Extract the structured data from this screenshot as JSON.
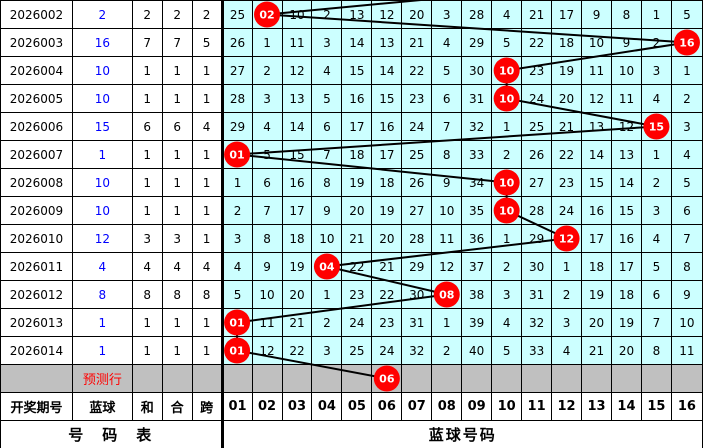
{
  "columns": {
    "period": "开奖期号",
    "blue": "蓝球",
    "sum": "和",
    "he": "合",
    "span": "跨"
  },
  "numbers": [
    "01",
    "02",
    "03",
    "04",
    "05",
    "06",
    "07",
    "08",
    "09",
    "10",
    "11",
    "12",
    "13",
    "14",
    "15",
    "16"
  ],
  "footer": {
    "left": "号　码　表",
    "right": "蓝球号码"
  },
  "prediction": {
    "label": "预测行",
    "ball": "06"
  },
  "colors": {
    "grid": "#ccffff",
    "ball": "#ff0000",
    "blue_text": "#0000ff",
    "prediction_row": "#c0c0c0"
  },
  "rows": [
    {
      "period": "2026002",
      "blue": "2",
      "sum": "2",
      "he": "2",
      "span": "2",
      "ball": "02",
      "misses": [
        "25",
        "",
        "10",
        "2",
        "13",
        "12",
        "20",
        "3",
        "28",
        "4",
        "21",
        "17",
        "9",
        "8",
        "1",
        "5"
      ]
    },
    {
      "period": "2026003",
      "blue": "16",
      "sum": "7",
      "he": "7",
      "span": "5",
      "ball": "16",
      "misses": [
        "26",
        "1",
        "11",
        "3",
        "14",
        "13",
        "21",
        "4",
        "29",
        "5",
        "22",
        "18",
        "10",
        "9",
        "2",
        ""
      ]
    },
    {
      "period": "2026004",
      "blue": "10",
      "sum": "1",
      "he": "1",
      "span": "1",
      "ball": "10",
      "misses": [
        "27",
        "2",
        "12",
        "4",
        "15",
        "14",
        "22",
        "5",
        "30",
        "",
        "23",
        "19",
        "11",
        "10",
        "3",
        "1"
      ]
    },
    {
      "period": "2026005",
      "blue": "10",
      "sum": "1",
      "he": "1",
      "span": "1",
      "ball": "10",
      "misses": [
        "28",
        "3",
        "13",
        "5",
        "16",
        "15",
        "23",
        "6",
        "31",
        "",
        "24",
        "20",
        "12",
        "11",
        "4",
        "2"
      ]
    },
    {
      "period": "2026006",
      "blue": "15",
      "sum": "6",
      "he": "6",
      "span": "4",
      "ball": "15",
      "misses": [
        "29",
        "4",
        "14",
        "6",
        "17",
        "16",
        "24",
        "7",
        "32",
        "1",
        "25",
        "21",
        "13",
        "12",
        "",
        "3"
      ]
    },
    {
      "period": "2026007",
      "blue": "1",
      "sum": "1",
      "he": "1",
      "span": "1",
      "ball": "01",
      "misses": [
        "",
        "5",
        "15",
        "7",
        "18",
        "17",
        "25",
        "8",
        "33",
        "2",
        "26",
        "22",
        "14",
        "13",
        "1",
        "4"
      ]
    },
    {
      "period": "2026008",
      "blue": "10",
      "sum": "1",
      "he": "1",
      "span": "1",
      "ball": "10",
      "misses": [
        "1",
        "6",
        "16",
        "8",
        "19",
        "18",
        "26",
        "9",
        "34",
        "",
        "27",
        "23",
        "15",
        "14",
        "2",
        "5"
      ]
    },
    {
      "period": "2026009",
      "blue": "10",
      "sum": "1",
      "he": "1",
      "span": "1",
      "ball": "10",
      "misses": [
        "2",
        "7",
        "17",
        "9",
        "20",
        "19",
        "27",
        "10",
        "35",
        "",
        "28",
        "24",
        "16",
        "15",
        "3",
        "6"
      ]
    },
    {
      "period": "2026010",
      "blue": "12",
      "sum": "3",
      "he": "3",
      "span": "1",
      "ball": "12",
      "misses": [
        "3",
        "8",
        "18",
        "10",
        "21",
        "20",
        "28",
        "11",
        "36",
        "1",
        "29",
        "",
        "17",
        "16",
        "4",
        "7"
      ]
    },
    {
      "period": "2026011",
      "blue": "4",
      "sum": "4",
      "he": "4",
      "span": "4",
      "ball": "04",
      "misses": [
        "4",
        "9",
        "19",
        "",
        "22",
        "21",
        "29",
        "12",
        "37",
        "2",
        "30",
        "1",
        "18",
        "17",
        "5",
        "8"
      ]
    },
    {
      "period": "2026012",
      "blue": "8",
      "sum": "8",
      "he": "8",
      "span": "8",
      "ball": "08",
      "misses": [
        "5",
        "10",
        "20",
        "1",
        "23",
        "22",
        "30",
        "",
        "38",
        "3",
        "31",
        "2",
        "19",
        "18",
        "6",
        "9"
      ]
    },
    {
      "period": "2026013",
      "blue": "1",
      "sum": "1",
      "he": "1",
      "span": "1",
      "ball": "01",
      "misses": [
        "",
        "11",
        "21",
        "2",
        "24",
        "23",
        "31",
        "1",
        "39",
        "4",
        "32",
        "3",
        "20",
        "19",
        "7",
        "10"
      ]
    },
    {
      "period": "2026014",
      "blue": "1",
      "sum": "1",
      "he": "1",
      "span": "1",
      "ball": "01",
      "misses": [
        "",
        "12",
        "22",
        "3",
        "25",
        "24",
        "32",
        "2",
        "40",
        "5",
        "33",
        "4",
        "21",
        "20",
        "8",
        "11"
      ]
    }
  ]
}
